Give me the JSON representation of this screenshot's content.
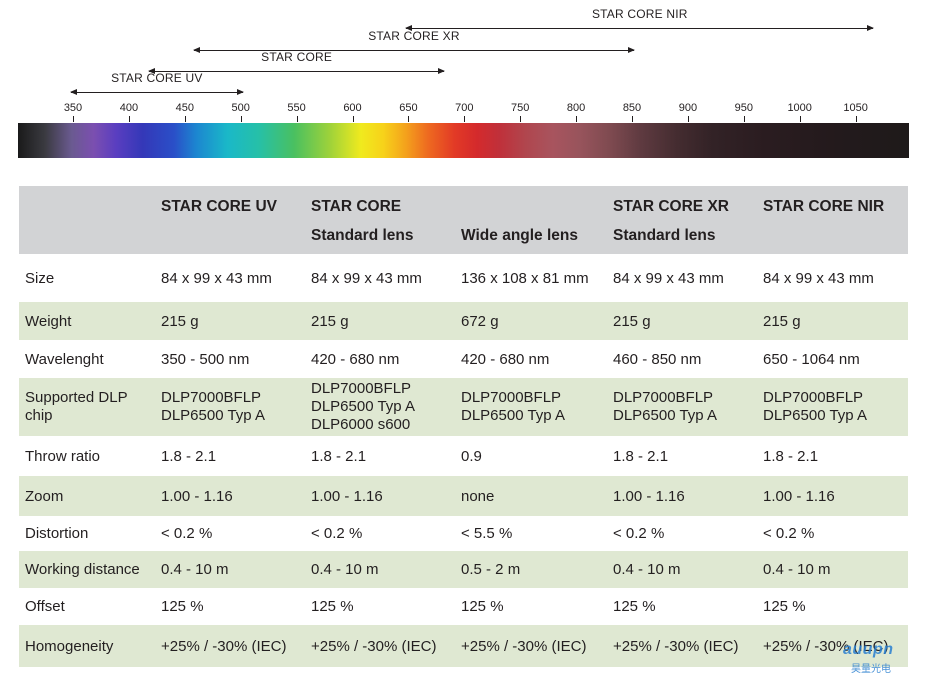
{
  "ranges": [
    {
      "id": "nir",
      "label": "STAR CORE NIR",
      "from": 650,
      "to": 1064
    },
    {
      "id": "xr",
      "label": "STAR CORE XR",
      "from": 460,
      "to": 850
    },
    {
      "id": "core",
      "label": "STAR CORE",
      "from": 420,
      "to": 680
    },
    {
      "id": "uv",
      "label": "STAR CORE UV",
      "from": 350,
      "to": 500
    }
  ],
  "ticks": [
    "350",
    "400",
    "450",
    "500",
    "550",
    "600",
    "650",
    "700",
    "750",
    "800",
    "850",
    "900",
    "950",
    "1000",
    "1050"
  ],
  "spectrum_range_nm": [
    350,
    1050
  ],
  "table": {
    "header_row1": [
      "",
      "STAR CORE UV",
      "STAR CORE",
      "",
      "STAR CORE XR",
      "STAR CORE NIR"
    ],
    "header_row2": [
      "",
      "",
      "Standard lens",
      "Wide angle lens",
      "Standard lens",
      ""
    ],
    "rows": [
      {
        "label": "Size",
        "values": [
          "84 x 99 x 43 mm",
          "84 x 99 x 43 mm",
          "136 x 108 x 81 mm",
          "84 x 99 x 43 mm",
          "84 x 99 x 43 mm"
        ]
      },
      {
        "label": "Weight",
        "values": [
          "215 g",
          "215 g",
          "672 g",
          "215 g",
          "215 g"
        ]
      },
      {
        "label": "Wavelenght",
        "values": [
          "350 - 500 nm",
          "420 - 680 nm",
          "420 - 680 nm",
          "460 - 850 nm",
          "650 - 1064 nm"
        ]
      },
      {
        "label": [
          "Supported DLP",
          "chip"
        ],
        "values": [
          [
            "DLP7000BFLP",
            "DLP6500 Typ A"
          ],
          [
            "DLP7000BFLP",
            "DLP6500 Typ A",
            "DLP6000 s600"
          ],
          [
            "DLP7000BFLP",
            "DLP6500 Typ A"
          ],
          [
            "DLP7000BFLP",
            "DLP6500 Typ A"
          ],
          [
            "DLP7000BFLP",
            "DLP6500 Typ A"
          ]
        ]
      },
      {
        "label": "Throw ratio",
        "values": [
          "1.8 - 2.1",
          "1.8 - 2.1",
          "0.9",
          "1.8 - 2.1",
          "1.8 - 2.1"
        ]
      },
      {
        "label": "Zoom",
        "values": [
          "1.00 - 1.16",
          "1.00 - 1.16",
          "none",
          "1.00 - 1.16",
          "1.00 - 1.16"
        ]
      },
      {
        "label": "Distortion",
        "values": [
          "< 0.2 %",
          "< 0.2 %",
          "< 5.5 %",
          "< 0.2 %",
          "< 0.2 %"
        ]
      },
      {
        "label": "Working distance",
        "values": [
          "0.4 - 10 m",
          "0.4 - 10 m",
          "0.5 - 2 m",
          "0.4 - 10 m",
          "0.4 - 10 m"
        ]
      },
      {
        "label": "Offset",
        "values": [
          "125 %",
          "125 %",
          "125 %",
          "125 %",
          "125 %"
        ]
      },
      {
        "label": "Homogeneity",
        "values": [
          "+25% / -30% (IEC)",
          "+25% / -30% (IEC)",
          "+25% / -30% (IEC)",
          "+25% / -30% (IEC)",
          "+25% / -30% (IEC)"
        ]
      }
    ]
  },
  "watermark": {
    "text": "auupn",
    "sub": "昊量光电"
  },
  "colors": {
    "header_bg": "#d2d3d5",
    "stripe_bg": "#dfe8d2",
    "text": "#231f20",
    "watermark": "#2a7fd0"
  }
}
